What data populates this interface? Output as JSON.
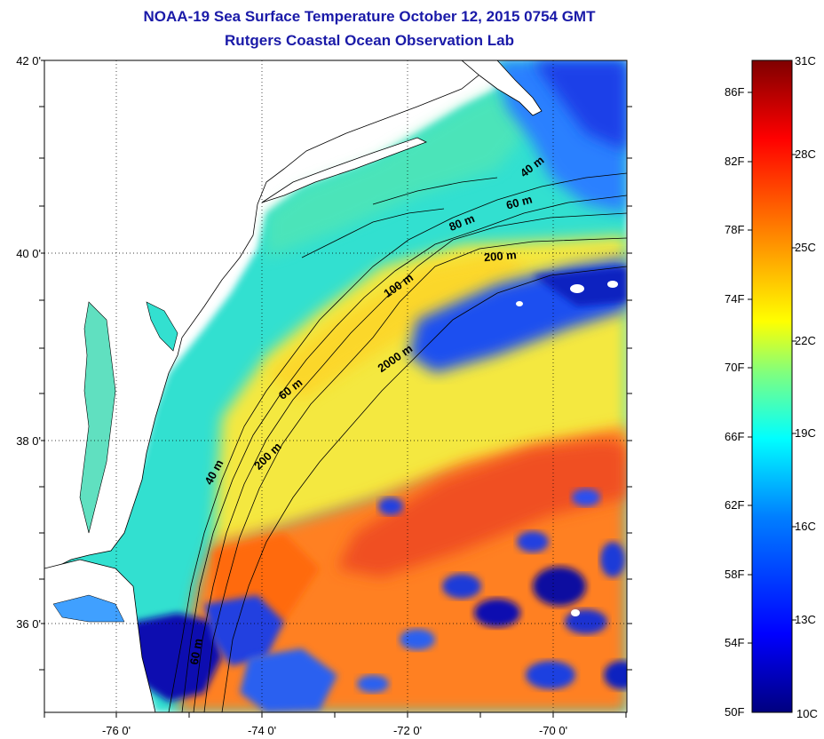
{
  "title": {
    "line1": "NOAA-19 Sea Surface Temperature October 12, 2015 0754 GMT",
    "line2": "Rutgers Coastal Ocean Observation Lab"
  },
  "map": {
    "lat_labels": [
      {
        "value": 42,
        "text": "42 0'"
      },
      {
        "value": 40,
        "text": "40 0'"
      },
      {
        "value": 38,
        "text": "38 0'"
      },
      {
        "value": 36,
        "text": "36 0'"
      }
    ],
    "lon_labels": [
      {
        "value": -76,
        "text": "-76 0'"
      },
      {
        "value": -74,
        "text": "-74 0'"
      },
      {
        "value": -72,
        "text": "-72 0'"
      },
      {
        "value": -70,
        "text": "-70 0'"
      }
    ],
    "lat_range": [
      35,
      42
    ],
    "lon_range": [
      -77,
      -69
    ],
    "contour_labels": [
      "40 m",
      "60 m",
      "80 m",
      "200 m",
      "100 m",
      "2000 m",
      "60 m",
      "40 m",
      "200 m",
      "60 m"
    ]
  },
  "colorbar": {
    "fahrenheit_labels": [
      "86F",
      "82F",
      "78F",
      "74F",
      "70F",
      "66F",
      "62F",
      "58F",
      "54F",
      "50F"
    ],
    "celsius_labels": [
      "31C",
      "28C",
      "25C",
      "22C",
      "19C",
      "16C",
      "13C",
      "10C"
    ],
    "range_celsius": [
      10,
      31
    ],
    "colors": [
      "#00007f",
      "#0000ff",
      "#007fff",
      "#00ffff",
      "#7fff7f",
      "#ffff00",
      "#ff7f00",
      "#ff0000",
      "#7f0000"
    ]
  },
  "palette": {
    "title_color": "#1a1aa8",
    "land": "#ffffff",
    "coast": "#000000"
  }
}
